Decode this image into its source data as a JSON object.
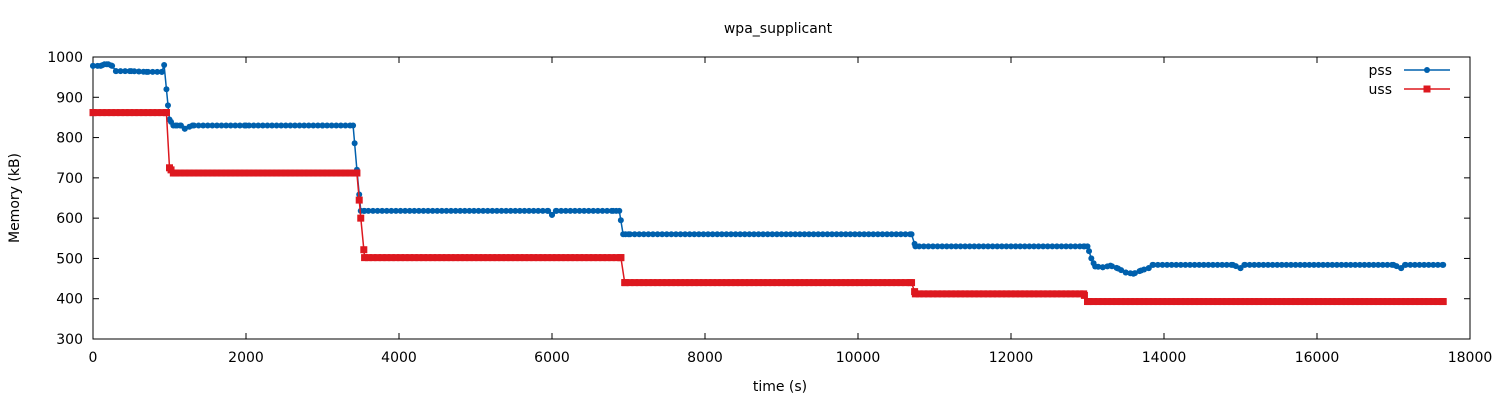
{
  "chart_data": {
    "type": "line",
    "title": "wpa_supplicant",
    "xlabel": "time (s)",
    "ylabel": "Memory (kB)",
    "xlim": [
      0,
      18000
    ],
    "ylim": [
      300,
      1000
    ],
    "xticks": [
      0,
      2000,
      4000,
      6000,
      8000,
      10000,
      12000,
      14000,
      16000,
      18000
    ],
    "yticks": [
      300,
      400,
      500,
      600,
      700,
      800,
      900,
      1000
    ],
    "xtick_labels": [
      "0",
      "2000",
      "4000",
      "6000",
      "8000",
      "10000",
      "12000",
      "14000",
      "16000",
      "18000"
    ],
    "ytick_labels": [
      "300",
      "400",
      "500",
      "600",
      "700",
      "800",
      "900",
      "1000"
    ],
    "grid": false,
    "legend_position": "top-right",
    "series": [
      {
        "name": "pss",
        "color": "#0060ad",
        "marker": "circle",
        "x": [
          0,
          100,
          150,
          200,
          250,
          300,
          500,
          700,
          900,
          930,
          980,
          1000,
          1050,
          1100,
          1150,
          1200,
          1300,
          2000,
          3000,
          3400,
          3450,
          3500,
          3550,
          5950,
          6000,
          6050,
          6800,
          6880,
          6930,
          7000,
          10700,
          10750,
          12950,
          13000,
          13050,
          13100,
          13200,
          13300,
          13400,
          13500,
          13600,
          13700,
          13800,
          13850,
          14900,
          15000,
          15050,
          17000,
          17100,
          17150,
          17650
        ],
        "y": [
          978,
          978,
          982,
          982,
          978,
          965,
          965,
          963,
          963,
          980,
          880,
          845,
          830,
          830,
          830,
          822,
          830,
          830,
          830,
          830,
          720,
          618,
          618,
          618,
          608,
          618,
          618,
          618,
          560,
          560,
          560,
          530,
          530,
          530,
          500,
          480,
          478,
          482,
          475,
          465,
          462,
          470,
          476,
          484,
          484,
          476,
          484,
          484,
          476,
          484,
          484
        ]
      },
      {
        "name": "uss",
        "color": "#dd181f",
        "marker": "square",
        "x": [
          0,
          960,
          1000,
          1050,
          3450,
          3500,
          3550,
          6900,
          6950,
          10700,
          10750,
          12950,
          13000,
          17650
        ],
        "y": [
          862,
          862,
          725,
          712,
          712,
          600,
          502,
          502,
          440,
          440,
          412,
          412,
          393,
          393
        ]
      }
    ]
  }
}
